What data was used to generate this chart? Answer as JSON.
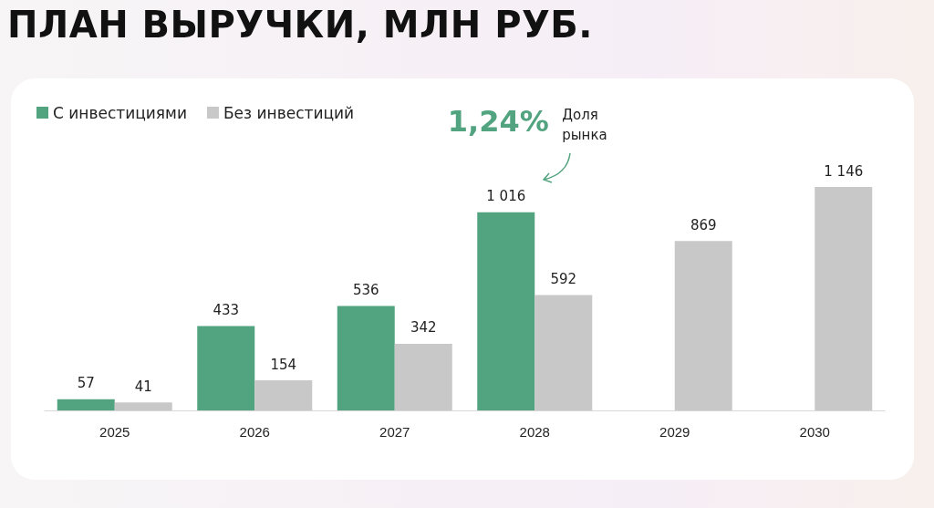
{
  "chart_data": {
    "type": "bar",
    "title": "ПЛАН ВЫРУЧКИ, МЛН РУБ.",
    "categories": [
      "2025",
      "2026",
      "2027",
      "2028",
      "2029",
      "2030"
    ],
    "series": [
      {
        "name": "С инвестициями",
        "color": "#52a37f",
        "values": [
          57,
          433,
          536,
          1016,
          null,
          null
        ],
        "value_labels": [
          "57",
          "433",
          "536",
          "1 016",
          null,
          null
        ]
      },
      {
        "name": "Без инвестиций",
        "color": "#c8c8c8",
        "values": [
          41,
          154,
          342,
          592,
          869,
          1146
        ],
        "value_labels": [
          "41",
          "154",
          "342",
          "592",
          "869",
          "1 146"
        ]
      }
    ],
    "annotations": [
      {
        "text": "1,24%",
        "x": "2028",
        "y": 1016
      },
      "Доля рынка"
    ],
    "legend": "top left"
  }
}
